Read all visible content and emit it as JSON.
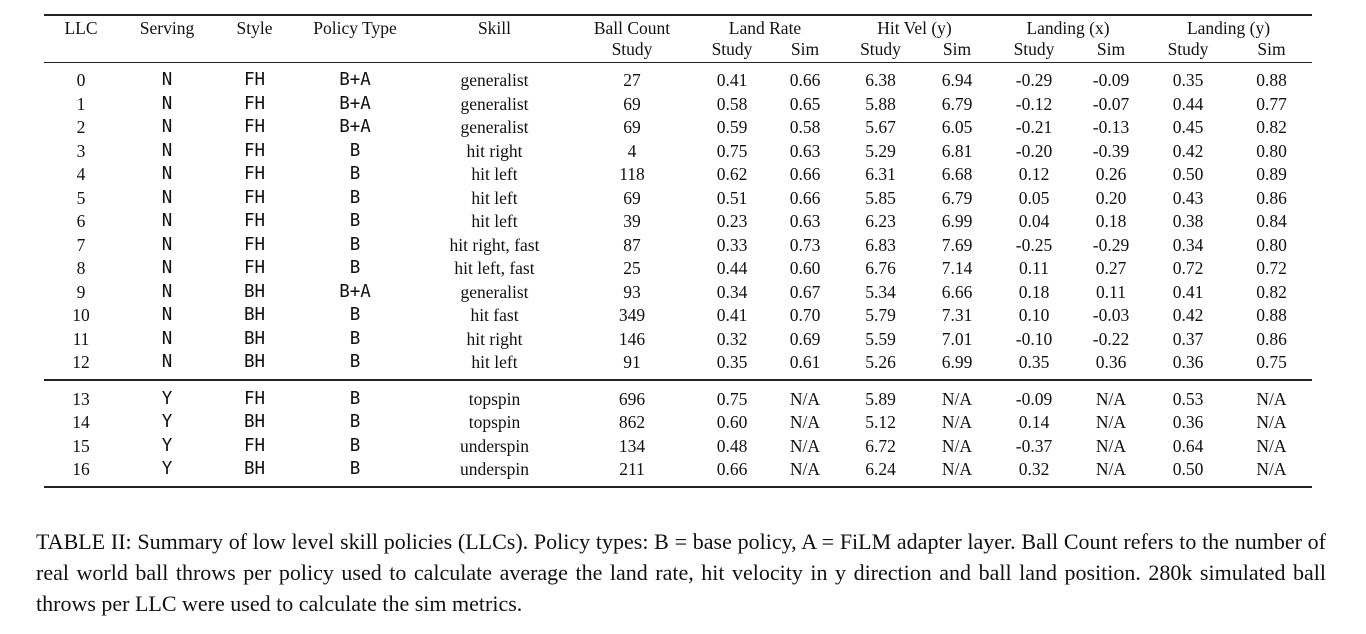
{
  "table": {
    "header": {
      "llc": "LLC",
      "serving": "Serving",
      "style": "Style",
      "policy_type": "Policy Type",
      "skill": "Skill",
      "ball_count": "Ball Count",
      "ball_count_sub": "Study",
      "land_rate": "Land Rate",
      "hit_vel": "Hit Vel (y)",
      "landing_x": "Landing (x)",
      "landing_y": "Landing (y)",
      "study": "Study",
      "sim": "Sim"
    },
    "group1": [
      [
        "0",
        "N",
        "FH",
        "B+A",
        "generalist",
        "27",
        "0.41",
        "0.66",
        "6.38",
        "6.94",
        "-0.29",
        "-0.09",
        "0.35",
        "0.88"
      ],
      [
        "1",
        "N",
        "FH",
        "B+A",
        "generalist",
        "69",
        "0.58",
        "0.65",
        "5.88",
        "6.79",
        "-0.12",
        "-0.07",
        "0.44",
        "0.77"
      ],
      [
        "2",
        "N",
        "FH",
        "B+A",
        "generalist",
        "69",
        "0.59",
        "0.58",
        "5.67",
        "6.05",
        "-0.21",
        "-0.13",
        "0.45",
        "0.82"
      ],
      [
        "3",
        "N",
        "FH",
        "B",
        "hit right",
        "4",
        "0.75",
        "0.63",
        "5.29",
        "6.81",
        "-0.20",
        "-0.39",
        "0.42",
        "0.80"
      ],
      [
        "4",
        "N",
        "FH",
        "B",
        "hit left",
        "118",
        "0.62",
        "0.66",
        "6.31",
        "6.68",
        "0.12",
        "0.26",
        "0.50",
        "0.89"
      ],
      [
        "5",
        "N",
        "FH",
        "B",
        "hit left",
        "69",
        "0.51",
        "0.66",
        "5.85",
        "6.79",
        "0.05",
        "0.20",
        "0.43",
        "0.86"
      ],
      [
        "6",
        "N",
        "FH",
        "B",
        "hit left",
        "39",
        "0.23",
        "0.63",
        "6.23",
        "6.99",
        "0.04",
        "0.18",
        "0.38",
        "0.84"
      ],
      [
        "7",
        "N",
        "FH",
        "B",
        "hit right, fast",
        "87",
        "0.33",
        "0.73",
        "6.83",
        "7.69",
        "-0.25",
        "-0.29",
        "0.34",
        "0.80"
      ],
      [
        "8",
        "N",
        "FH",
        "B",
        "hit left, fast",
        "25",
        "0.44",
        "0.60",
        "6.76",
        "7.14",
        "0.11",
        "0.27",
        "0.72",
        "0.72"
      ],
      [
        "9",
        "N",
        "BH",
        "B+A",
        "generalist",
        "93",
        "0.34",
        "0.67",
        "5.34",
        "6.66",
        "0.18",
        "0.11",
        "0.41",
        "0.82"
      ],
      [
        "10",
        "N",
        "BH",
        "B",
        "hit fast",
        "349",
        "0.41",
        "0.70",
        "5.79",
        "7.31",
        "0.10",
        "-0.03",
        "0.42",
        "0.88"
      ],
      [
        "11",
        "N",
        "BH",
        "B",
        "hit right",
        "146",
        "0.32",
        "0.69",
        "5.59",
        "7.01",
        "-0.10",
        "-0.22",
        "0.37",
        "0.86"
      ],
      [
        "12",
        "N",
        "BH",
        "B",
        "hit left",
        "91",
        "0.35",
        "0.61",
        "5.26",
        "6.99",
        "0.35",
        "0.36",
        "0.36",
        "0.75"
      ]
    ],
    "group2": [
      [
        "13",
        "Y",
        "FH",
        "B",
        "topspin",
        "696",
        "0.75",
        "N/A",
        "5.89",
        "N/A",
        "-0.09",
        "N/A",
        "0.53",
        "N/A"
      ],
      [
        "14",
        "Y",
        "BH",
        "B",
        "topspin",
        "862",
        "0.60",
        "N/A",
        "5.12",
        "N/A",
        "0.14",
        "N/A",
        "0.36",
        "N/A"
      ],
      [
        "15",
        "Y",
        "FH",
        "B",
        "underspin",
        "134",
        "0.48",
        "N/A",
        "6.72",
        "N/A",
        "-0.37",
        "N/A",
        "0.64",
        "N/A"
      ],
      [
        "16",
        "Y",
        "BH",
        "B",
        "underspin",
        "211",
        "0.66",
        "N/A",
        "6.24",
        "N/A",
        "0.32",
        "N/A",
        "0.50",
        "N/A"
      ]
    ]
  },
  "caption": "TABLE II: Summary of low level skill policies (LLCs). Policy types: B = base policy, A = FiLM adapter layer. Ball Count refers to the number of real world ball throws per policy used to calculate average the land rate, hit velocity in y direction and ball land position. 280k simulated ball throws per LLC were used to calculate the sim metrics."
}
